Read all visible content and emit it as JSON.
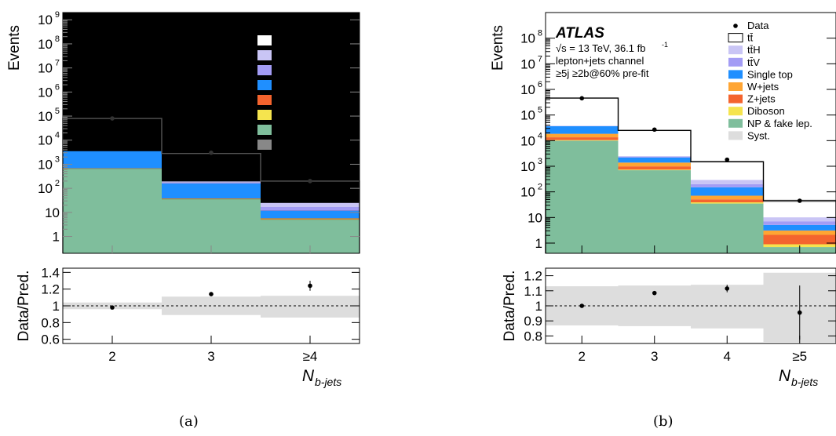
{
  "captions": {
    "a": "(a)",
    "b": "(b)"
  },
  "chart_data": [
    {
      "type": "bar",
      "panel": "a",
      "stacked": true,
      "log_y": true,
      "background": "#000000",
      "xlabel": "N",
      "xlabel_sub": "b-jets",
      "ylabel": "Events",
      "ratio_ylabel": "Data/Pred.",
      "ylim": [
        0.2,
        2000000000
      ],
      "ratio_ylim": [
        0.55,
        1.45
      ],
      "categories": [
        "2",
        "3",
        "≥4"
      ],
      "y_ticks": [
        {
          "v": 1,
          "label": "1"
        },
        {
          "v": 10,
          "label": "10"
        },
        {
          "v": 100,
          "label": "10",
          "exp": "2"
        },
        {
          "v": 1000,
          "label": "10",
          "exp": "3"
        },
        {
          "v": 10000,
          "label": "10",
          "exp": "4"
        },
        {
          "v": 100000,
          "label": "10",
          "exp": "5"
        },
        {
          "v": 1000000,
          "label": "10",
          "exp": "6"
        },
        {
          "v": 10000000,
          "label": "10",
          "exp": "7"
        },
        {
          "v": 100000000,
          "label": "10",
          "exp": "8"
        },
        {
          "v": 1000000000,
          "label": "10",
          "exp": "9"
        }
      ],
      "ratio_ticks": [
        0.6,
        0.8,
        1,
        1.2,
        1.4
      ],
      "series": [
        {
          "color": "#7fbe9c",
          "values": [
            650,
            35,
            5
          ]
        },
        {
          "color": "#f5e44e",
          "values": [
            5,
            0.5,
            0.1
          ]
        },
        {
          "color": "#f4642e",
          "values": [
            6,
            0.5,
            0.1
          ]
        },
        {
          "color": "#ffa533",
          "values": [
            20,
            2,
            0.5
          ]
        },
        {
          "color": "#1f8fff",
          "values": [
            2800,
            120,
            6
          ]
        },
        {
          "color": "#a39cf5",
          "values": [
            20,
            15,
            5
          ]
        },
        {
          "color": "#c9c5f5",
          "values": [
            20,
            20,
            8
          ]
        }
      ],
      "outline_totals": [
        80000,
        2800,
        200
      ],
      "data_points": [
        80000,
        3000,
        200
      ],
      "ratio_points": [
        {
          "v": 0.98,
          "err": 0.01
        },
        {
          "v": 1.14,
          "err": 0.01
        },
        {
          "v": 1.24,
          "err": 0.06
        }
      ],
      "ratio_band": [
        [
          0.96,
          1.04
        ],
        [
          0.89,
          1.11
        ],
        [
          0.86,
          1.12
        ]
      ],
      "legend_swatches": [
        "#ffffff",
        "#c9c5f5",
        "#a39cf5",
        "#1f8fff",
        "#f4642e",
        "#f5e44e",
        "#7fbe9c",
        "#888888"
      ]
    },
    {
      "type": "bar",
      "panel": "b",
      "stacked": true,
      "log_y": true,
      "xlabel": "N",
      "xlabel_sub": "b-jets",
      "ylabel": "Events",
      "ratio_ylabel": "Data/Pred.",
      "ylim": [
        0.4,
        1000000000
      ],
      "ratio_ylim": [
        0.75,
        1.25
      ],
      "categories": [
        "2",
        "3",
        "4",
        "≥5"
      ],
      "y_ticks": [
        {
          "v": 1,
          "label": "1"
        },
        {
          "v": 10,
          "label": "10"
        },
        {
          "v": 100,
          "label": "10",
          "exp": "2"
        },
        {
          "v": 1000,
          "label": "10",
          "exp": "3"
        },
        {
          "v": 10000,
          "label": "10",
          "exp": "4"
        },
        {
          "v": 100000,
          "label": "10",
          "exp": "5"
        },
        {
          "v": 1000000,
          "label": "10",
          "exp": "6"
        },
        {
          "v": 10000000,
          "label": "10",
          "exp": "7"
        },
        {
          "v": 100000000,
          "label": "10",
          "exp": "8"
        }
      ],
      "ratio_ticks": [
        0.8,
        0.9,
        1,
        1.1,
        1.2
      ],
      "atlas": {
        "label": "ATLAS",
        "energy": "√s = 13 TeV, 36.1 fb",
        "lumi_exp": "-1",
        "channel": "lepton+jets channel",
        "selection": "≥5j  ≥2b@60% pre-fit"
      },
      "legend": [
        {
          "name": "Data",
          "kind": "marker"
        },
        {
          "name": "tt̄",
          "kind": "outline"
        },
        {
          "name": "tt̄H",
          "color": "#c9c5f5"
        },
        {
          "name": "tt̄V",
          "color": "#a39cf5"
        },
        {
          "name": "Single top",
          "color": "#1f8fff"
        },
        {
          "name": "W+jets",
          "color": "#ffa533"
        },
        {
          "name": "Z+jets",
          "color": "#f4642e"
        },
        {
          "name": "Diboson",
          "color": "#f5e44e"
        },
        {
          "name": "NP & fake lep.",
          "color": "#7fbe9c"
        },
        {
          "name": "Syst.",
          "color": "#dddddd"
        }
      ],
      "series": [
        {
          "name": "NP & fake lep.",
          "color": "#7fbe9c",
          "values": [
            10000,
            700,
            35,
            0.7
          ]
        },
        {
          "name": "Diboson",
          "color": "#f5e44e",
          "values": [
            500,
            40,
            4,
            0.2
          ]
        },
        {
          "name": "Z+jets",
          "color": "#f4642e",
          "values": [
            3000,
            250,
            12,
            1.2
          ]
        },
        {
          "name": "W+jets",
          "color": "#ffa533",
          "values": [
            5000,
            400,
            20,
            1
          ]
        },
        {
          "name": "Single top",
          "color": "#1f8fff",
          "values": [
            18000,
            800,
            80,
            2
          ]
        },
        {
          "name": "tt̄V",
          "color": "#a39cf5",
          "values": [
            800,
            150,
            50,
            2
          ]
        },
        {
          "name": "tt̄H",
          "color": "#c9c5f5",
          "values": [
            600,
            150,
            90,
            3
          ]
        }
      ],
      "outline_totals": [
        460000,
        25000,
        1500,
        45
      ],
      "syst_band": [
        [
          440000,
          480000
        ],
        [
          23500,
          26500
        ],
        [
          1400,
          1600
        ],
        [
          38,
          52
        ]
      ],
      "data_points": [
        450000,
        27000,
        1800,
        45
      ],
      "ratio_points": [
        {
          "v": 1.0,
          "err": 0.003
        },
        {
          "v": 1.085,
          "err": 0.007
        },
        {
          "v": 1.115,
          "err": 0.025
        },
        {
          "v": 0.955,
          "err": 0.18
        }
      ],
      "ratio_band": [
        [
          0.87,
          1.13
        ],
        [
          0.865,
          1.135
        ],
        [
          0.85,
          1.14
        ],
        [
          0.76,
          1.22
        ]
      ]
    }
  ]
}
